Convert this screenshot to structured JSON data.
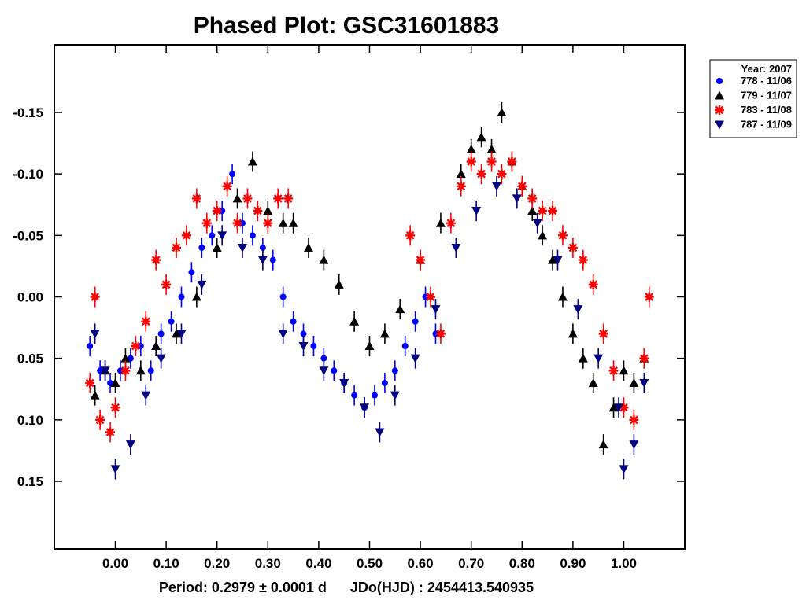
{
  "chart_data": {
    "type": "scatter",
    "title": "Phased Plot: GSC31601883",
    "xlabel": "Period: 0.2979 ± 0.0001 d      JDo(HJD) : 2454413.540935",
    "ylabel": "",
    "xlim": [
      -0.12,
      1.12
    ],
    "ylim": [
      -0.205,
      0.205
    ],
    "y_inverted": true,
    "grid": false,
    "legend_position": "top-right, outside plot area",
    "legend_title": "Year: 2007",
    "x_ticks": [
      "0.00",
      "0.10",
      "0.20",
      "0.30",
      "0.40",
      "0.50",
      "0.60",
      "0.70",
      "0.80",
      "0.90",
      "1.00"
    ],
    "y_ticks": [
      "-0.15",
      "-0.10",
      "-0.05",
      "0.00",
      "0.05",
      "0.10",
      "0.15"
    ],
    "series": [
      {
        "name": "778 - 11/06",
        "marker": "circle",
        "color": "#0000ff",
        "x": [
          -0.05,
          -0.03,
          -0.01,
          0.01,
          0.03,
          0.05,
          0.07,
          0.09,
          0.11,
          0.13,
          0.15,
          0.17,
          0.19,
          0.21,
          0.23,
          0.25,
          0.27,
          0.29,
          0.31,
          0.33,
          0.35,
          0.37,
          0.39,
          0.41,
          0.43,
          0.45,
          0.47,
          0.49,
          0.51,
          0.53,
          0.55,
          0.57,
          0.59,
          0.61,
          0.63
        ],
        "y": [
          0.04,
          0.06,
          0.07,
          0.06,
          0.05,
          0.04,
          0.06,
          0.03,
          0.02,
          0.0,
          -0.02,
          -0.04,
          -0.05,
          -0.07,
          -0.1,
          -0.06,
          -0.05,
          -0.04,
          -0.03,
          0.0,
          0.02,
          0.03,
          0.04,
          0.05,
          0.06,
          0.07,
          0.08,
          0.09,
          0.08,
          0.07,
          0.06,
          0.04,
          0.02,
          0.0,
          0.03
        ]
      },
      {
        "name": "779 - 11/07",
        "marker": "triangle-up",
        "color": "#000000",
        "x": [
          -0.04,
          -0.02,
          0.0,
          0.02,
          0.05,
          0.08,
          0.12,
          0.16,
          0.2,
          0.24,
          0.27,
          0.3,
          0.33,
          0.35,
          0.38,
          0.41,
          0.44,
          0.47,
          0.5,
          0.53,
          0.56,
          0.6,
          0.64,
          0.68,
          0.7,
          0.72,
          0.74,
          0.76,
          0.78,
          0.8,
          0.82,
          0.84,
          0.86,
          0.88,
          0.9,
          0.92,
          0.94,
          0.96,
          0.98,
          1.0,
          1.02,
          1.04
        ],
        "y": [
          0.08,
          0.06,
          0.07,
          0.05,
          0.06,
          0.04,
          0.03,
          0.0,
          -0.04,
          -0.08,
          -0.11,
          -0.07,
          -0.06,
          -0.06,
          -0.04,
          -0.03,
          -0.01,
          0.02,
          0.04,
          0.03,
          0.01,
          -0.03,
          -0.06,
          -0.1,
          -0.12,
          -0.13,
          -0.12,
          -0.15,
          -0.11,
          -0.09,
          -0.07,
          -0.05,
          -0.03,
          0.0,
          0.03,
          0.05,
          0.07,
          0.12,
          0.09,
          0.06,
          0.07,
          0.05
        ]
      },
      {
        "name": "783 - 11/08",
        "marker": "asterisk",
        "color": "#ff0000",
        "x": [
          -0.05,
          -0.04,
          -0.03,
          -0.01,
          0.0,
          0.02,
          0.04,
          0.06,
          0.08,
          0.1,
          0.12,
          0.14,
          0.16,
          0.18,
          0.2,
          0.22,
          0.24,
          0.26,
          0.28,
          0.3,
          0.32,
          0.34,
          0.58,
          0.6,
          0.62,
          0.64,
          0.66,
          0.68,
          0.7,
          0.72,
          0.74,
          0.76,
          0.78,
          0.8,
          0.82,
          0.84,
          0.86,
          0.88,
          0.9,
          0.92,
          0.94,
          0.96,
          0.98,
          1.0,
          1.02,
          1.04,
          1.05
        ],
        "y": [
          0.07,
          0.0,
          0.1,
          0.11,
          0.09,
          0.06,
          0.04,
          0.02,
          -0.03,
          -0.01,
          -0.04,
          -0.05,
          -0.08,
          -0.06,
          -0.07,
          -0.09,
          -0.06,
          -0.08,
          -0.07,
          -0.06,
          -0.08,
          -0.08,
          -0.05,
          -0.03,
          0.0,
          0.03,
          -0.06,
          -0.09,
          -0.11,
          -0.1,
          -0.11,
          -0.1,
          -0.11,
          -0.09,
          -0.08,
          -0.07,
          -0.07,
          -0.05,
          -0.04,
          -0.03,
          -0.01,
          0.03,
          0.06,
          0.09,
          0.1,
          0.05,
          0.0
        ]
      },
      {
        "name": "787 - 11/09",
        "marker": "triangle-down",
        "color": "#000080",
        "x": [
          -0.04,
          -0.02,
          0.0,
          0.03,
          0.06,
          0.09,
          0.13,
          0.17,
          0.21,
          0.25,
          0.29,
          0.33,
          0.37,
          0.41,
          0.45,
          0.49,
          0.52,
          0.55,
          0.59,
          0.63,
          0.67,
          0.71,
          0.75,
          0.79,
          0.83,
          0.87,
          0.91,
          0.95,
          0.99,
          1.0,
          1.02,
          1.04
        ],
        "y": [
          0.03,
          0.06,
          0.14,
          0.12,
          0.08,
          0.05,
          0.03,
          -0.01,
          -0.05,
          -0.04,
          -0.03,
          0.03,
          0.04,
          0.06,
          0.07,
          0.09,
          0.11,
          0.08,
          0.05,
          0.01,
          -0.04,
          -0.07,
          -0.09,
          -0.08,
          -0.06,
          -0.03,
          0.01,
          0.05,
          0.09,
          0.14,
          0.12,
          0.07
        ]
      }
    ]
  }
}
